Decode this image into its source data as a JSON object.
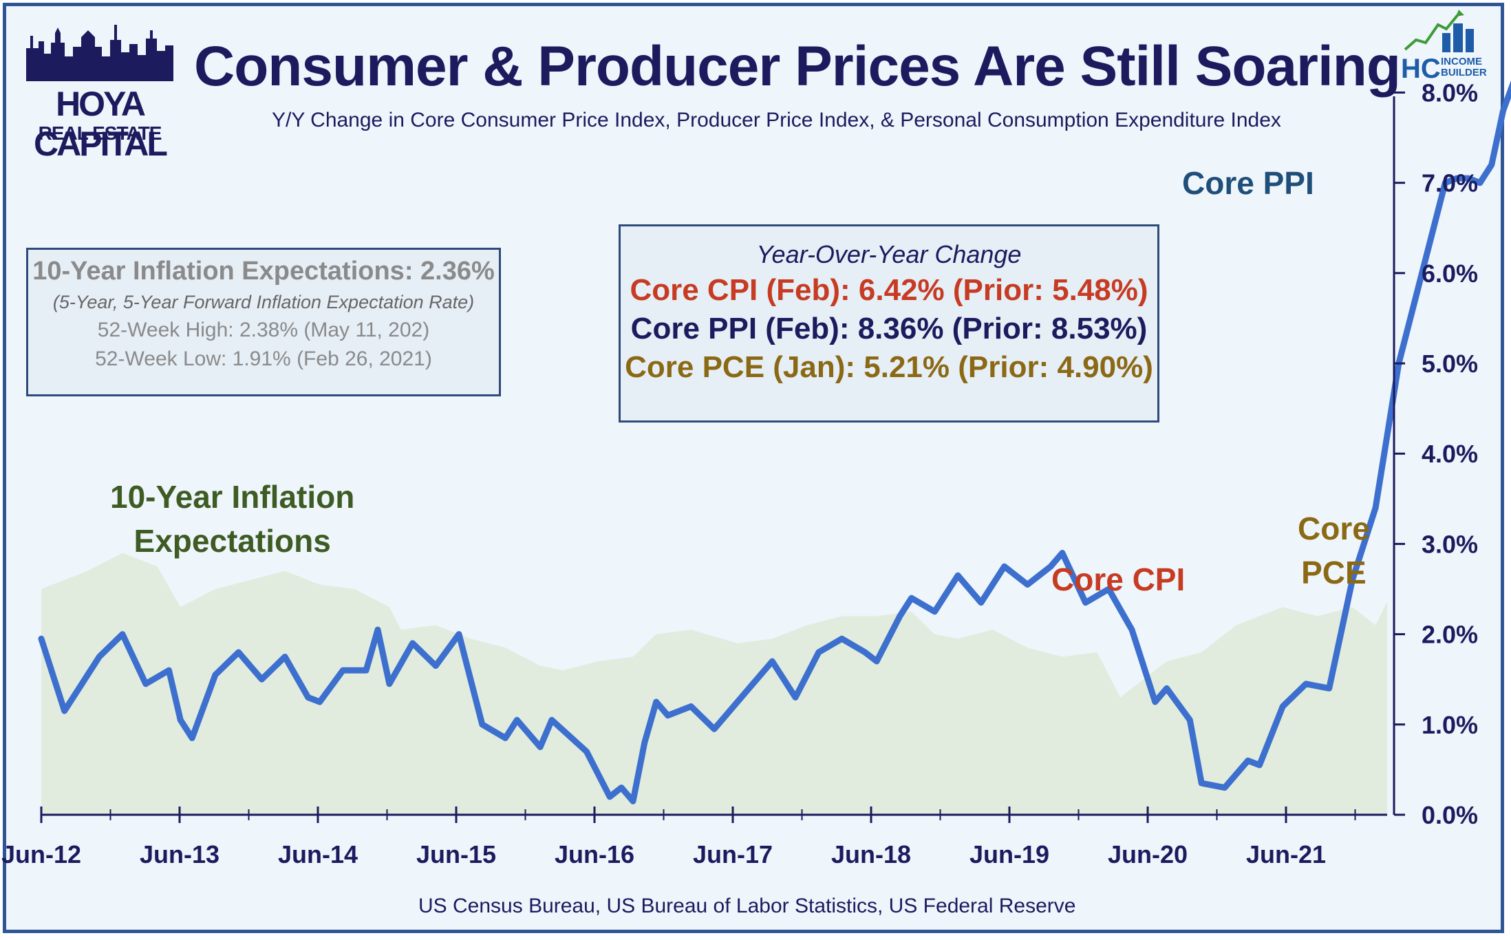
{
  "header": {
    "title": "Consumer & Producer Prices Are Still Soaring",
    "subtitle": "Y/Y Change in Core Consumer Price Index, Producer Price Index, & Personal Consumption Expenditure Index",
    "source": "US Census Bureau, US Bureau of Labor Statistics, US Federal Reserve"
  },
  "logos": {
    "hoya_line1": "HOYA CAPITAL",
    "hoya_line2": "REAL ESTATE",
    "hc_mark": "HC",
    "hc_line1": "INCOME",
    "hc_line2": "BUILDER"
  },
  "inflation_box": {
    "line1": "10-Year Inflation Expectations: 2.36%",
    "line2": "(5-Year, 5-Year Forward Inflation Expectation Rate)",
    "line3": "52-Week High: 2.38% (May 11, 202)",
    "line4": "52-Week Low: 1.91% (Feb 26, 2021)"
  },
  "yoy_box": {
    "heading": "Year-Over-Year Change",
    "cpi_line": "Core CPI (Feb):  6.42% (Prior: 5.48%)",
    "ppi_line": "Core PPI (Feb): 8.36% (Prior: 8.53%)",
    "pce_line": "Core PCE (Jan): 5.21% (Prior: 4.90%)"
  },
  "labels": {
    "infl_a": "10-Year Inflation",
    "infl_b": "Expectations",
    "ppi": "Core PPI",
    "cpi": "Core CPI",
    "pce_a": "Core",
    "pce_b": "PCE"
  },
  "colors": {
    "ppi": "#3d6fce",
    "cpi": "#c63b22",
    "pce": "#f5a53c",
    "inflation_area": "#e1ecde",
    "inflation_text": "#3e5b23",
    "ppi_text": "#1f4e79",
    "navy": "#1b1b5e",
    "pce_text": "#8b6914"
  },
  "chart_data": {
    "type": "line",
    "x_unit": "month",
    "x_start": "2012-06",
    "x_end": "2022-02",
    "x_tick_labels": [
      "Jun-12",
      "Jun-13",
      "Jun-14",
      "Jun-15",
      "Jun-16",
      "Jun-17",
      "Jun-18",
      "Jun-19",
      "Jun-20",
      "Jun-21"
    ],
    "y_tick_labels": [
      "0.0%",
      "1.0%",
      "2.0%",
      "3.0%",
      "4.0%",
      "5.0%",
      "6.0%",
      "7.0%",
      "8.0%"
    ],
    "ylim": [
      0,
      8.4
    ],
    "series": [
      {
        "name": "10-Year Inflation Expectations",
        "style": "area",
        "points": [
          [
            "2012-06",
            2.5
          ],
          [
            "2012-10",
            2.7
          ],
          [
            "2013-01",
            2.9
          ],
          [
            "2013-04",
            2.75
          ],
          [
            "2013-06",
            2.3
          ],
          [
            "2013-09",
            2.5
          ],
          [
            "2013-12",
            2.6
          ],
          [
            "2014-03",
            2.7
          ],
          [
            "2014-06",
            2.55
          ],
          [
            "2014-09",
            2.5
          ],
          [
            "2014-12",
            2.3
          ],
          [
            "2015-01",
            2.05
          ],
          [
            "2015-04",
            2.1
          ],
          [
            "2015-07",
            1.95
          ],
          [
            "2015-10",
            1.85
          ],
          [
            "2016-01",
            1.65
          ],
          [
            "2016-03",
            1.6
          ],
          [
            "2016-06",
            1.7
          ],
          [
            "2016-09",
            1.75
          ],
          [
            "2016-11",
            2.0
          ],
          [
            "2017-02",
            2.05
          ],
          [
            "2017-06",
            1.9
          ],
          [
            "2017-09",
            1.95
          ],
          [
            "2017-12",
            2.1
          ],
          [
            "2018-03",
            2.2
          ],
          [
            "2018-06",
            2.2
          ],
          [
            "2018-09",
            2.25
          ],
          [
            "2018-11",
            2.0
          ],
          [
            "2019-01",
            1.95
          ],
          [
            "2019-04",
            2.05
          ],
          [
            "2019-07",
            1.85
          ],
          [
            "2019-10",
            1.75
          ],
          [
            "2020-01",
            1.8
          ],
          [
            "2020-03",
            1.3
          ],
          [
            "2020-05",
            1.5
          ],
          [
            "2020-07",
            1.7
          ],
          [
            "2020-10",
            1.8
          ],
          [
            "2021-01",
            2.1
          ],
          [
            "2021-05",
            2.3
          ],
          [
            "2021-08",
            2.2
          ],
          [
            "2021-11",
            2.3
          ],
          [
            "2022-01",
            2.1
          ],
          [
            "2022-02",
            2.36
          ]
        ]
      },
      {
        "name": "Core PPI",
        "points": [
          [
            "2012-06",
            1.95
          ],
          [
            "2012-08",
            1.15
          ],
          [
            "2012-11",
            1.75
          ],
          [
            "2013-01",
            2.0
          ],
          [
            "2013-03",
            1.45
          ],
          [
            "2013-05",
            1.6
          ],
          [
            "2013-06",
            1.05
          ],
          [
            "2013-07",
            0.85
          ],
          [
            "2013-09",
            1.55
          ],
          [
            "2013-11",
            1.8
          ],
          [
            "2014-01",
            1.5
          ],
          [
            "2014-03",
            1.75
          ],
          [
            "2014-05",
            1.3
          ],
          [
            "2014-06",
            1.25
          ],
          [
            "2014-08",
            1.6
          ],
          [
            "2014-10",
            1.6
          ],
          [
            "2014-11",
            2.05
          ],
          [
            "2014-12",
            1.45
          ],
          [
            "2015-02",
            1.9
          ],
          [
            "2015-04",
            1.65
          ],
          [
            "2015-06",
            2.0
          ],
          [
            "2015-08",
            1.0
          ],
          [
            "2015-10",
            0.85
          ],
          [
            "2015-11",
            1.05
          ],
          [
            "2016-01",
            0.75
          ],
          [
            "2016-02",
            1.05
          ],
          [
            "2016-05",
            0.7
          ],
          [
            "2016-07",
            0.2
          ],
          [
            "2016-08",
            0.3
          ],
          [
            "2016-09",
            0.15
          ],
          [
            "2016-10",
            0.8
          ],
          [
            "2016-11",
            1.25
          ],
          [
            "2016-12",
            1.1
          ],
          [
            "2017-02",
            1.2
          ],
          [
            "2017-04",
            0.95
          ],
          [
            "2017-07",
            1.4
          ],
          [
            "2017-09",
            1.7
          ],
          [
            "2017-11",
            1.3
          ],
          [
            "2018-01",
            1.8
          ],
          [
            "2018-03",
            1.95
          ],
          [
            "2018-05",
            1.8
          ],
          [
            "2018-06",
            1.7
          ],
          [
            "2018-08",
            2.2
          ],
          [
            "2018-09",
            2.4
          ],
          [
            "2018-11",
            2.25
          ],
          [
            "2019-01",
            2.65
          ],
          [
            "2019-03",
            2.35
          ],
          [
            "2019-05",
            2.75
          ],
          [
            "2019-07",
            2.55
          ],
          [
            "2019-09",
            2.75
          ],
          [
            "2019-10",
            2.9
          ],
          [
            "2019-12",
            2.35
          ],
          [
            "2020-02",
            2.5
          ],
          [
            "2020-04",
            2.05
          ],
          [
            "2020-06",
            1.25
          ],
          [
            "2020-07",
            1.4
          ],
          [
            "2020-09",
            1.05
          ],
          [
            "2020-10",
            0.35
          ],
          [
            "2020-12",
            0.3
          ],
          [
            "2021-02",
            0.6
          ],
          [
            "2021-03",
            0.55
          ],
          [
            "2021-05",
            1.2
          ],
          [
            "2021-07",
            1.45
          ],
          [
            "2021-09",
            1.4
          ],
          [
            "2021-11",
            2.6
          ],
          [
            "2022-01",
            3.4
          ],
          [
            "2022-03",
            5.0
          ],
          [
            "2022-05",
            6.0
          ],
          [
            "2022-07",
            7.0
          ],
          [
            "2022-08",
            7.05
          ],
          [
            "2022-09",
            7.05
          ],
          [
            "2022-10",
            7.0
          ],
          [
            "2022-11",
            7.2
          ],
          [
            "2022-12",
            7.8
          ],
          [
            "2023-02",
            8.5
          ],
          [
            "2023-04",
            8.53
          ],
          [
            "2023-05",
            8.36
          ]
        ]
      }
    ]
  }
}
